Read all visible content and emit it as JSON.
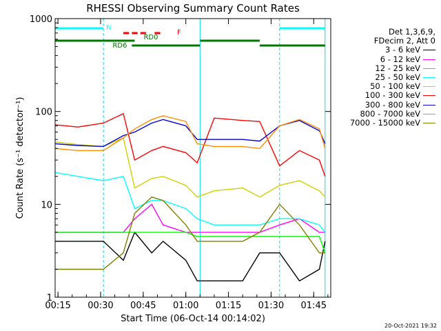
{
  "chart_data": {
    "type": "line",
    "title": "RHESSI Observing Summary Count Rates",
    "xlabel": "Start Time (06-Oct-14 00:14:02)",
    "ylabel": "Count Rate (s⁻¹ detector⁻¹)",
    "ylog": true,
    "ylim": [
      1,
      1000
    ],
    "xlim": [
      "00:14",
      "01:51"
    ],
    "x_ticks": [
      "00:15",
      "00:30",
      "00:45",
      "01:00",
      "01:15",
      "01:30",
      "01:45"
    ],
    "y_ticks": [
      "1",
      "10",
      "100",
      "1000"
    ],
    "legend_title": [
      "Det 1,3,6,9,",
      "FDecim 2, Att 0"
    ],
    "series": [
      {
        "name": "3 - 6 keV",
        "color": "#000000",
        "x": [
          "00:14",
          "00:31",
          "00:38",
          "00:42",
          "00:48",
          "00:52",
          "01:00",
          "01:04",
          "01:10",
          "01:20",
          "01:26",
          "01:33",
          "01:40",
          "01:47",
          "01:49"
        ],
        "y": [
          4,
          4,
          2.5,
          5,
          3,
          4,
          2.5,
          1.5,
          1.5,
          1.5,
          3,
          3,
          1.5,
          2,
          4
        ]
      },
      {
        "name": "6 - 12 keV",
        "color": "#ff00ff",
        "x": [
          "00:14",
          "00:31",
          "00:38",
          "00:42",
          "00:48",
          "00:52",
          "01:00",
          "01:04",
          "01:10",
          "01:20",
          "01:26",
          "01:33",
          "01:40",
          "01:47",
          "01:49"
        ],
        "y": [
          5,
          5,
          5,
          7,
          10,
          6,
          5,
          5,
          5,
          5,
          5,
          6,
          7,
          5,
          5
        ]
      },
      {
        "name": "12 - 25 keV",
        "color": "#00ff00",
        "x": [
          "00:14",
          "00:31",
          "00:38",
          "00:42",
          "00:48",
          "00:52",
          "01:00",
          "01:04",
          "01:10",
          "01:20",
          "01:26",
          "01:33",
          "01:40",
          "01:47",
          "01:49"
        ],
        "y": [
          5,
          5,
          5,
          5,
          5,
          5,
          5,
          4.5,
          4.5,
          4.5,
          4.5,
          4.5,
          4.5,
          4.5,
          3
        ]
      },
      {
        "name": "25 - 50 keV",
        "color": "#00ffff",
        "x": [
          "00:14",
          "00:22",
          "00:31",
          "00:38",
          "00:42",
          "00:48",
          "00:52",
          "01:00",
          "01:04",
          "01:10",
          "01:20",
          "01:26",
          "01:33",
          "01:40",
          "01:47",
          "01:49"
        ],
        "y": [
          22,
          20,
          18,
          20,
          9,
          11,
          11,
          9,
          7,
          6,
          6,
          6,
          7,
          7,
          6,
          5
        ]
      },
      {
        "name": "50 - 100 keV",
        "color": "#d0d000",
        "x": [
          "00:14",
          "00:22",
          "00:31",
          "00:38",
          "00:42",
          "00:48",
          "00:52",
          "01:00",
          "01:04",
          "01:10",
          "01:20",
          "01:26",
          "01:33",
          "01:40",
          "01:47",
          "01:49"
        ],
        "y": [
          47,
          44,
          42,
          52,
          15,
          19,
          20,
          16,
          12,
          14,
          15,
          12,
          16,
          18,
          14,
          12
        ]
      },
      {
        "name": "100 - 300 keV",
        "color": "#ff0000",
        "x": [
          "00:14",
          "00:22",
          "00:31",
          "00:38",
          "00:42",
          "00:48",
          "00:52",
          "01:00",
          "01:04",
          "01:10",
          "01:20",
          "01:26",
          "01:33",
          "01:40",
          "01:47",
          "01:49"
        ],
        "y": [
          72,
          68,
          75,
          95,
          30,
          38,
          42,
          36,
          28,
          85,
          80,
          78,
          26,
          38,
          30,
          20
        ]
      },
      {
        "name": "300 - 800 keV",
        "color": "#0000dd",
        "x": [
          "00:14",
          "00:22",
          "00:31",
          "00:38",
          "00:42",
          "00:48",
          "00:52",
          "01:00",
          "01:04",
          "01:10",
          "01:20",
          "01:26",
          "01:33",
          "01:40",
          "01:47",
          "01:49"
        ],
        "y": [
          45,
          43,
          42,
          55,
          60,
          75,
          82,
          70,
          50,
          50,
          50,
          48,
          70,
          80,
          62,
          45
        ]
      },
      {
        "name": "800 - 7000 keV",
        "color": "#ff8c00",
        "x": [
          "00:14",
          "00:22",
          "00:31",
          "00:38",
          "00:42",
          "00:48",
          "00:52",
          "01:00",
          "01:04",
          "01:10",
          "01:20",
          "01:26",
          "01:33",
          "01:40",
          "01:47",
          "01:49"
        ],
        "y": [
          40,
          38,
          38,
          52,
          65,
          82,
          90,
          78,
          45,
          42,
          42,
          40,
          70,
          82,
          65,
          40
        ]
      },
      {
        "name": "7000 - 15000 keV",
        "color": "#808000",
        "x": [
          "00:14",
          "00:31",
          "00:38",
          "00:42",
          "00:48",
          "00:52",
          "01:00",
          "01:04",
          "01:10",
          "01:20",
          "01:26",
          "01:33",
          "01:40",
          "01:47",
          "01:49"
        ],
        "y": [
          2,
          2,
          3,
          8,
          12,
          11,
          6,
          4,
          4,
          4,
          5,
          10,
          6,
          3,
          3
        ]
      }
    ],
    "flags": [
      {
        "label": "N",
        "color": "#00ffff",
        "segments": [
          [
            "00:14",
            "00:31"
          ],
          [
            "01:33",
            "01:49"
          ]
        ]
      },
      {
        "label": "F",
        "color": "#ff0000",
        "segments": [
          [
            "00:38",
            "00:40"
          ],
          [
            "00:41",
            "00:43"
          ],
          [
            "00:44",
            "00:46"
          ],
          [
            "00:49",
            "00:51"
          ]
        ]
      },
      {
        "label": "RD0",
        "color": "#007700",
        "segments": [
          [
            "00:14",
            "00:42"
          ],
          [
            "01:05",
            "01:26"
          ]
        ]
      },
      {
        "label": "RD6",
        "color": "#007700",
        "segments": [
          [
            "00:41",
            "01:05"
          ],
          [
            "01:26",
            "01:49"
          ]
        ]
      }
    ],
    "vlines": [
      "00:31",
      "01:05",
      "01:33",
      "01:49"
    ]
  },
  "stamp": "20-Oct-2021 19:32"
}
